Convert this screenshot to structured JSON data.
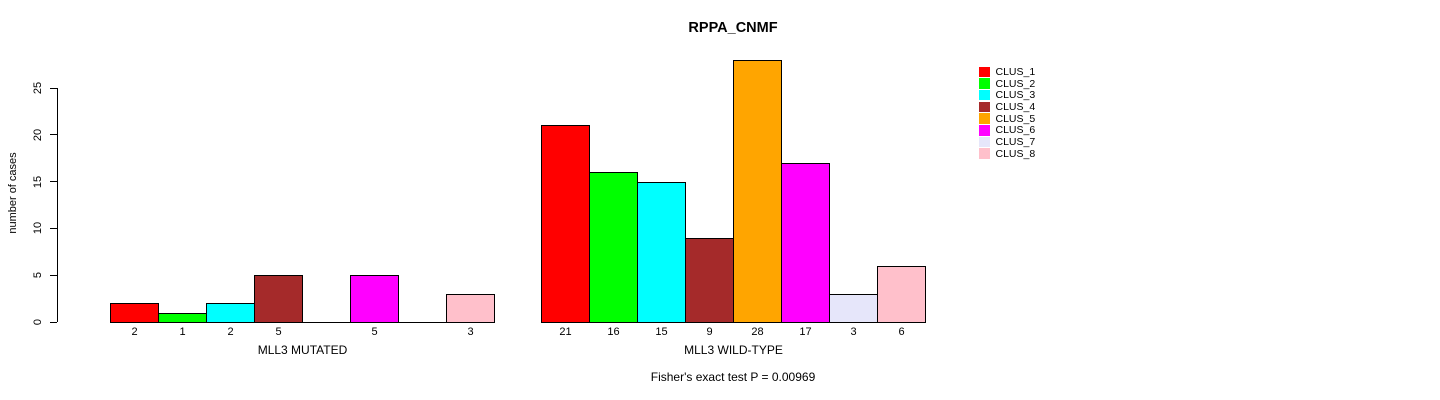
{
  "chart_data": {
    "type": "bar",
    "title": "RPPA_CNMF",
    "ylabel": "number of cases",
    "yticks": [
      0,
      5,
      10,
      15,
      20,
      25
    ],
    "ylim": [
      0,
      28
    ],
    "grid": false,
    "legend_position": "right",
    "clusters": [
      {
        "name": "CLUS_1",
        "color": "#FF0000"
      },
      {
        "name": "CLUS_2",
        "color": "#00FF00"
      },
      {
        "name": "CLUS_3",
        "color": "#00FFFF"
      },
      {
        "name": "CLUS_4",
        "color": "#A52A2A"
      },
      {
        "name": "CLUS_5",
        "color": "#FFA500"
      },
      {
        "name": "CLUS_6",
        "color": "#FF00FF"
      },
      {
        "name": "CLUS_7",
        "color": "#E6E6FA"
      },
      {
        "name": "CLUS_8",
        "color": "#FFC0CB"
      }
    ],
    "groups": [
      {
        "label": "MLL3 MUTATED",
        "values": [
          2,
          1,
          2,
          5,
          0,
          5,
          0,
          3
        ]
      },
      {
        "label": "MLL3 WILD-TYPE",
        "values": [
          21,
          16,
          15,
          9,
          28,
          17,
          3,
          6
        ]
      }
    ],
    "annotation": "Fisher's exact test P = 0.00969"
  }
}
